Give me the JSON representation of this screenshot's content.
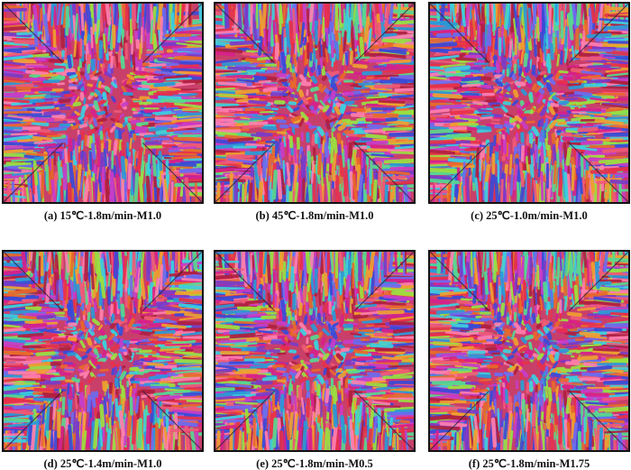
{
  "figure": {
    "panels": [
      {
        "caption": "(a) 15℃-1.8m/min-M1.0"
      },
      {
        "caption": "(b) 45℃-1.8m/min-M1.0"
      },
      {
        "caption": "(c) 25℃-1.0m/min-M1.0"
      },
      {
        "caption": "(d) 25℃-1.4m/min-M1.0"
      },
      {
        "caption": "(e) 25℃-1.8m/min-M0.5"
      },
      {
        "caption": "(f) 25℃-1.8m/min-M1.75"
      }
    ]
  }
}
